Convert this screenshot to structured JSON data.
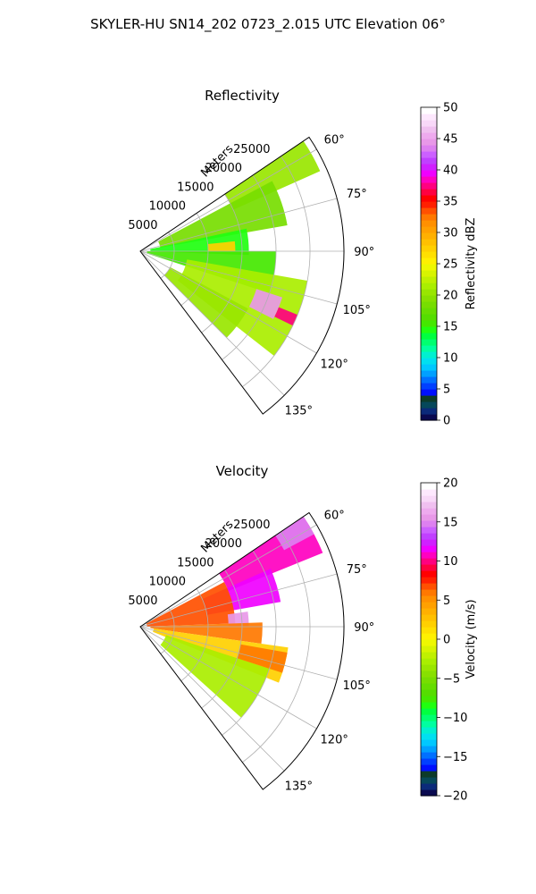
{
  "figure": {
    "suptitle": "SKYLER-HU  SN14_202  0723_2.015 UTC Elevation 06°"
  },
  "chart_data": [
    {
      "type": "polar-sector-radar",
      "title": "Reflectivity",
      "radial_axis_label": "Meters",
      "radial_ticks": [
        5000,
        10000,
        15000,
        20000,
        25000
      ],
      "radial_tick_labels": [
        "5000",
        "10000",
        "15000",
        "20000",
        "25000"
      ],
      "angle_ticks_deg": [
        60,
        75,
        90,
        105,
        120,
        135
      ],
      "angle_tick_labels": [
        "60°",
        "75°",
        "90°",
        "105°",
        "120°",
        "135°"
      ],
      "theta_range_deg": [
        56,
        143
      ],
      "r_range": [
        0,
        30000
      ],
      "grid": true,
      "colorbar": {
        "label": "Reflectivity dBZ",
        "range": [
          0,
          50
        ],
        "ticks": [
          0,
          5,
          10,
          15,
          20,
          25,
          30,
          35,
          40,
          45,
          50
        ],
        "tick_labels": [
          "0",
          "5",
          "10",
          "15",
          "20",
          "25",
          "30",
          "35",
          "40",
          "45",
          "50"
        ]
      },
      "regions": [
        {
          "theta": [
            56,
            66
          ],
          "r": [
            15000,
            29000
          ],
          "value": 20
        },
        {
          "theta": [
            62,
            80
          ],
          "r": [
            3000,
            22000
          ],
          "value": 18
        },
        {
          "theta": [
            78,
            92
          ],
          "r": [
            1500,
            16000
          ],
          "value": 14
        },
        {
          "theta": [
            84,
            90
          ],
          "r": [
            10000,
            14000
          ],
          "value": 28
        },
        {
          "theta": [
            90,
            108
          ],
          "r": [
            1000,
            20000
          ],
          "value": 15
        },
        {
          "theta": [
            100,
            128
          ],
          "r": [
            7000,
            25000
          ],
          "value": 21
        },
        {
          "theta": [
            108,
            117
          ],
          "r": [
            18000,
            22000
          ],
          "value": 45
        },
        {
          "theta": [
            112,
            116
          ],
          "r": [
            22000,
            25000
          ],
          "value": 38
        },
        {
          "theta": [
            118,
            135
          ],
          "r": [
            5000,
            18000
          ],
          "value": 20
        }
      ]
    },
    {
      "type": "polar-sector-radar",
      "title": "Velocity",
      "radial_axis_label": "Meters",
      "radial_ticks": [
        5000,
        10000,
        15000,
        20000,
        25000
      ],
      "radial_tick_labels": [
        "5000",
        "10000",
        "15000",
        "20000",
        "25000"
      ],
      "angle_ticks_deg": [
        60,
        75,
        90,
        105,
        120,
        135
      ],
      "angle_tick_labels": [
        "60°",
        "75°",
        "90°",
        "105°",
        "120°",
        "135°"
      ],
      "theta_range_deg": [
        56,
        143
      ],
      "r_range": [
        0,
        30000
      ],
      "grid": true,
      "colorbar": {
        "label": "Velocity (m/s)",
        "range": [
          -20,
          20
        ],
        "ticks": [
          -20,
          -15,
          -10,
          -5,
          0,
          5,
          10,
          15,
          20
        ],
        "tick_labels": [
          "−20",
          "−15",
          "−10",
          "−5",
          "0",
          "5",
          "10",
          "15",
          "20"
        ]
      },
      "regions": [
        {
          "theta": [
            56,
            68
          ],
          "r": [
            14000,
            29000
          ],
          "value": 11
        },
        {
          "theta": [
            56,
            62
          ],
          "r": [
            24000,
            29000
          ],
          "value": 15
        },
        {
          "theta": [
            66,
            80
          ],
          "r": [
            10000,
            21000
          ],
          "value": 12
        },
        {
          "theta": [
            62,
            88
          ],
          "r": [
            1000,
            14000
          ],
          "value": 7
        },
        {
          "theta": [
            82,
            90
          ],
          "r": [
            13000,
            16000
          ],
          "value": 16
        },
        {
          "theta": [
            88,
            98
          ],
          "r": [
            1500,
            18000
          ],
          "value": 6
        },
        {
          "theta": [
            98,
            112
          ],
          "r": [
            2000,
            22000
          ],
          "value": 2
        },
        {
          "theta": [
            108,
            132
          ],
          "r": [
            4000,
            20000
          ],
          "value": -3
        },
        {
          "theta": [
            100,
            108
          ],
          "r": [
            15000,
            22000
          ],
          "value": 6
        }
      ]
    }
  ]
}
